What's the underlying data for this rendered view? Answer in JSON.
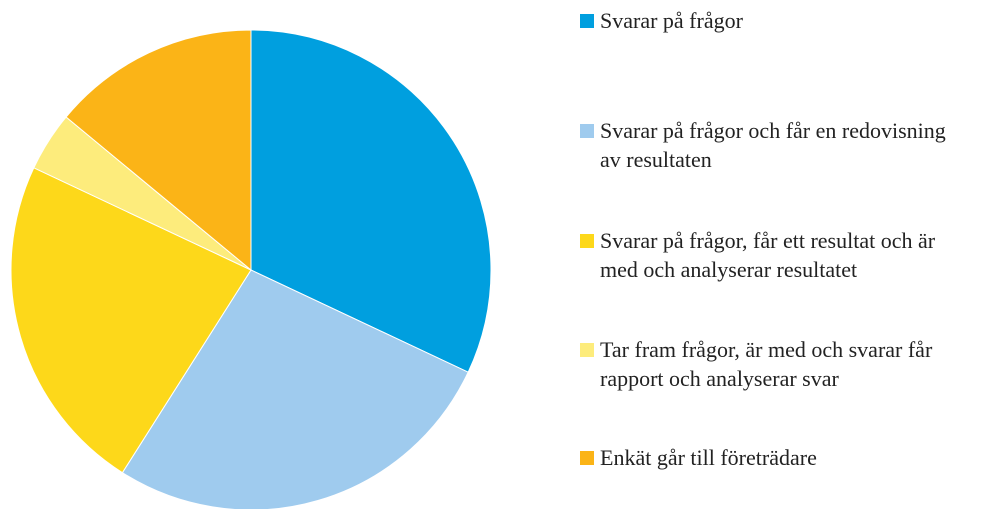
{
  "chart_data": {
    "type": "pie",
    "categories": [
      "Svarar på frågor",
      "Svarar på frågor och får en redovisning av resultaten",
      "Svarar på frågor, får ett resultat och är med och analyserar resultatet",
      "Tar fram frågor, är med och svarar får rapport och analyserar svar",
      "Enkät går till företrädare"
    ],
    "values": [
      32,
      27,
      23,
      4,
      14
    ],
    "colors": [
      "#009fdf",
      "#9fcbee",
      "#fdd81a",
      "#fdec7c",
      "#fbb417"
    ],
    "legend": "right"
  }
}
